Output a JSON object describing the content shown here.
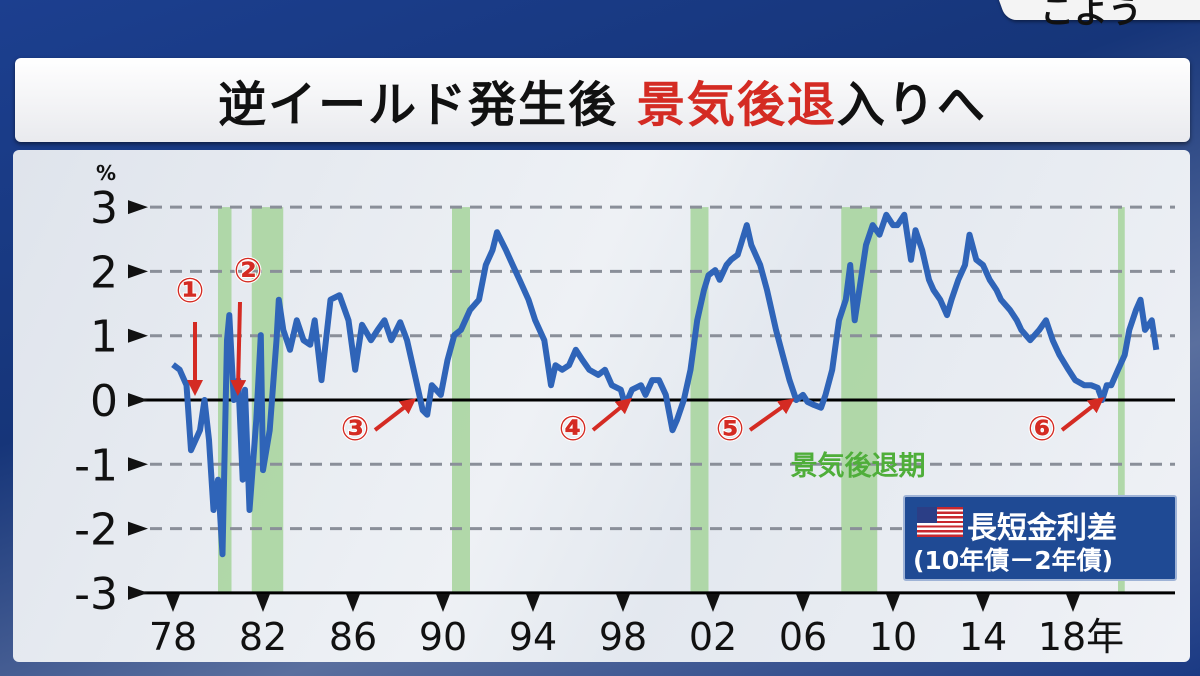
{
  "corner_text": "こよう",
  "title": {
    "part1": "逆イールド発生後 ",
    "highlight": "景気後退",
    "part2": "入りへ",
    "highlight_color": "#d42b23"
  },
  "legend": {
    "flag_icon": "us-flag-icon",
    "line1": "長短金利差",
    "line2": "(10年債－2年債)"
  },
  "annotations": {
    "markers": [
      "①",
      "②",
      "③",
      "④",
      "⑤",
      "⑥"
    ],
    "recession_label": "景気後退期"
  },
  "colors": {
    "line": "#2f64b8",
    "recession": "#a6d49b",
    "arrow": "#d42b23",
    "label_green": "#4fae3a"
  },
  "chart_data": {
    "type": "line",
    "title": "",
    "ylabel": "%",
    "xlabel": "年",
    "ylim": [
      -3,
      3
    ],
    "yticks": [
      "3",
      "2",
      "1",
      "0",
      "-1",
      "-2",
      "-3"
    ],
    "xticks": [
      "78",
      "82",
      "86",
      "90",
      "94",
      "98",
      "02",
      "06",
      "10",
      "14",
      "18年"
    ],
    "xtick_years": [
      1978,
      1982,
      1986,
      1990,
      1994,
      1998,
      2002,
      2006,
      2010,
      2014,
      2018
    ],
    "grid": "dashed horizontal",
    "recessions": [
      [
        1980.0,
        1980.6
      ],
      [
        1981.5,
        1982.9
      ],
      [
        1990.4,
        1991.2
      ],
      [
        2001.0,
        2001.8
      ],
      [
        2007.7,
        2009.3
      ],
      [
        2020.0,
        2020.3
      ]
    ],
    "inversion_markers_years": [
      1978.8,
      1980.9,
      1989.0,
      1998.1,
      2005.8,
      2019.3
    ],
    "series": [
      {
        "x": [
          1978.0,
          1978.3,
          1978.6,
          1978.8,
          1979.2,
          1979.4,
          1979.6,
          1979.8,
          1980.0,
          1980.2,
          1980.4,
          1980.5,
          1980.7,
          1980.9,
          1981.1,
          1981.2,
          1981.4,
          1981.7,
          1981.9,
          1982.0,
          1982.3,
          1982.6,
          1982.7,
          1982.9,
          1983.2,
          1983.5,
          1983.8,
          1984.1,
          1984.3,
          1984.6,
          1985.0,
          1985.4,
          1985.8,
          1986.1,
          1986.4,
          1986.8,
          1987.1,
          1987.4,
          1987.7,
          1988.1,
          1988.4,
          1988.8,
          1989.1,
          1989.3,
          1989.5,
          1989.9,
          1990.2,
          1990.5,
          1990.8,
          1991.2,
          1991.6,
          1991.9,
          1992.2,
          1992.4,
          1992.8,
          1993.1,
          1993.4,
          1993.8,
          1994.1,
          1994.5,
          1994.8,
          1995.0,
          1995.3,
          1995.6,
          1995.9,
          1996.2,
          1996.5,
          1996.9,
          1997.2,
          1997.5,
          1997.9,
          1998.1,
          1998.4,
          1998.8,
          1999.0,
          1999.3,
          1999.6,
          1999.9,
          2000.2,
          2000.4,
          2000.7,
          2001.0,
          2001.3,
          2001.6,
          2001.8,
          2002.1,
          2002.3,
          2002.6,
          2002.8,
          2003.1,
          2003.5,
          2003.7,
          2004.1,
          2004.4,
          2004.8,
          2005.1,
          2005.4,
          2005.7,
          2006.0,
          2006.2,
          2006.5,
          2006.8,
          2007.0,
          2007.3,
          2007.6,
          2007.9,
          2008.1,
          2008.3,
          2008.5,
          2008.8,
          2009.1,
          2009.4,
          2009.7,
          2010.0,
          2010.2,
          2010.5,
          2010.8,
          2011.0,
          2011.3,
          2011.6,
          2011.8,
          2012.1,
          2012.4,
          2012.6,
          2012.9,
          2013.2,
          2013.4,
          2013.7,
          2014.0,
          2014.3,
          2014.6,
          2014.8,
          2015.2,
          2015.5,
          2015.7,
          2016.1,
          2016.5,
          2016.8,
          2017.1,
          2017.4,
          2017.8,
          2018.1,
          2018.5,
          2018.8,
          2019.1,
          2019.3,
          2019.5,
          2019.7,
          2020.0,
          2020.3,
          2020.5,
          2020.8,
          2021.0,
          2021.2,
          2021.5,
          2021.7
        ],
        "y": [
          0.55,
          0.47,
          0.23,
          -0.78,
          -0.47,
          0.0,
          -0.62,
          -1.71,
          -1.24,
          -2.4,
          0.93,
          1.32,
          0.0,
          0.31,
          -1.24,
          0.16,
          -1.71,
          -0.31,
          1.01,
          -1.09,
          -0.47,
          0.93,
          1.56,
          1.09,
          0.78,
          1.24,
          0.93,
          0.86,
          1.24,
          0.31,
          1.56,
          1.63,
          1.24,
          0.47,
          1.17,
          0.93,
          1.09,
          1.24,
          0.93,
          1.21,
          0.93,
          0.31,
          -0.16,
          -0.23,
          0.23,
          0.08,
          0.62,
          1.01,
          1.09,
          1.4,
          1.56,
          2.1,
          2.33,
          2.61,
          2.33,
          2.1,
          1.87,
          1.56,
          1.24,
          0.93,
          0.23,
          0.54,
          0.47,
          0.54,
          0.78,
          0.62,
          0.47,
          0.39,
          0.47,
          0.23,
          0.16,
          -0.08,
          0.16,
          0.23,
          0.08,
          0.31,
          0.31,
          0.08,
          -0.47,
          -0.31,
          0.0,
          0.47,
          1.24,
          1.71,
          1.94,
          2.02,
          1.87,
          2.1,
          2.18,
          2.26,
          2.72,
          2.41,
          2.1,
          1.71,
          1.09,
          0.7,
          0.31,
          0.0,
          0.08,
          -0.03,
          -0.08,
          -0.12,
          0.08,
          0.47,
          1.24,
          1.56,
          2.1,
          1.24,
          1.71,
          2.41,
          2.72,
          2.57,
          2.88,
          2.72,
          2.72,
          2.88,
          2.18,
          2.64,
          2.33,
          1.87,
          1.71,
          1.56,
          1.32,
          1.56,
          1.87,
          2.1,
          2.57,
          2.18,
          2.1,
          1.87,
          1.71,
          1.56,
          1.4,
          1.24,
          1.09,
          0.93,
          1.09,
          1.24,
          0.93,
          0.7,
          0.47,
          0.31,
          0.23,
          0.23,
          0.19,
          0.0,
          0.23,
          0.23,
          0.47,
          0.7,
          1.09,
          1.4,
          1.56,
          1.09,
          1.24,
          0.78
        ]
      }
    ]
  }
}
